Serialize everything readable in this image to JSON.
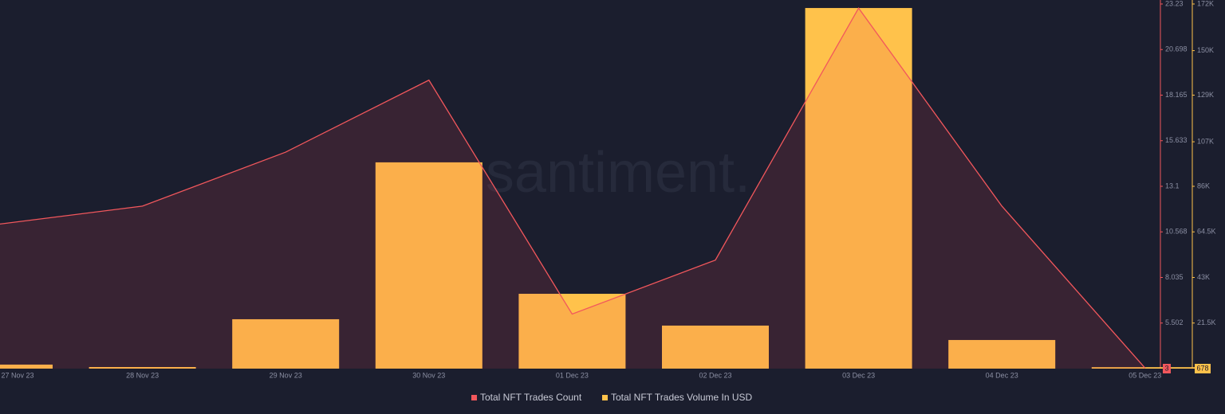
{
  "chart_data": {
    "type": "bar-line",
    "watermark": "santiment.",
    "categories": [
      "27 Nov 23",
      "28 Nov 23",
      "29 Nov 23",
      "30 Nov 23",
      "01 Dec 23",
      "02 Dec 23",
      "03 Dec 23",
      "04 Dec 23",
      "05 Dec 23"
    ],
    "series": [
      {
        "name": "Total NFT Trades Count",
        "color": "#f2575c",
        "kind": "line",
        "axis": "y",
        "values": [
          11,
          12,
          15,
          19,
          6,
          9,
          23,
          12,
          3
        ]
      },
      {
        "name": "Total NFT Trades Volume In USD",
        "color": "#ffc24b",
        "kind": "bar",
        "axis": "y2",
        "values": [
          1900,
          750,
          23300,
          97300,
          35300,
          20300,
          170100,
          13500,
          678
        ]
      }
    ],
    "ylim": [
      2.97,
      23.23
    ],
    "yticks": [
      23.23,
      20.698,
      18.165,
      15.633,
      13.1,
      10.568,
      8.035,
      5.502
    ],
    "y2lim": [
      0,
      172000
    ],
    "y2ticks": [
      {
        "value": 172000,
        "label": "172K"
      },
      {
        "value": 150000,
        "label": "150K"
      },
      {
        "value": 129000,
        "label": "129K"
      },
      {
        "value": 107000,
        "label": "107K"
      },
      {
        "value": 86000,
        "label": "86K"
      },
      {
        "value": 64500,
        "label": "64.5K"
      },
      {
        "value": 43000,
        "label": "43K"
      },
      {
        "value": 21500,
        "label": "21.5K"
      }
    ],
    "legend": "bottom"
  }
}
